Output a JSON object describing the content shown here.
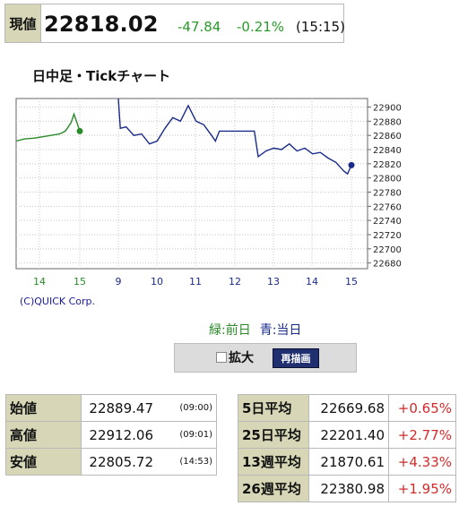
{
  "quote": {
    "label": "現値",
    "price": "22818.02",
    "change": "-47.84",
    "change_pct": "-0.21%",
    "time": "(15:15)"
  },
  "chart_title": "日中足・Tickチャート",
  "copyright": "(C)QUICK Corp.",
  "legend": {
    "prev": "緑:前日",
    "today": "青:当日",
    "prev_color": "#2a8a2a",
    "today_color": "#1a2a8a"
  },
  "controls": {
    "zoom_label": "拡大",
    "zoom_checked": false,
    "redraw_label": "再描画"
  },
  "ohl": [
    {
      "label": "始値",
      "value": "22889.47",
      "time": "(09:00)"
    },
    {
      "label": "高値",
      "value": "22912.06",
      "time": "(09:01)"
    },
    {
      "label": "安値",
      "value": "22805.72",
      "time": "(14:53)"
    }
  ],
  "averages": [
    {
      "label": "5日平均",
      "value": "22669.68",
      "pct": "+0.65%"
    },
    {
      "label": "25日平均",
      "value": "22201.40",
      "pct": "+2.77%"
    },
    {
      "label": "13週平均",
      "value": "21870.61",
      "pct": "+4.33%"
    },
    {
      "label": "26週平均",
      "value": "22380.98",
      "pct": "+1.95%"
    }
  ],
  "chart_data": {
    "type": "line",
    "title": "日中足・Tickチャート",
    "xlabel": "",
    "ylabel": "",
    "x_ticks": [
      "14",
      "15",
      "9",
      "10",
      "11",
      "12",
      "13",
      "14",
      "15"
    ],
    "y_ticks": [
      22900,
      22880,
      22860,
      22840,
      22820,
      22800,
      22780,
      22760,
      22740,
      22720,
      22700,
      22680
    ],
    "ylim": [
      22672,
      22912
    ],
    "grid": true,
    "y_axis_side": "right",
    "series": [
      {
        "color": "#2a8a2a",
        "points": [
          [
            13.0,
            22852
          ],
          [
            13.3,
            22855
          ],
          [
            13.6,
            22856
          ],
          [
            13.9,
            22858
          ],
          [
            14.2,
            22860
          ],
          [
            14.5,
            22862
          ],
          [
            14.7,
            22866
          ],
          [
            14.9,
            22878
          ],
          [
            15.0,
            22890
          ],
          [
            15.1,
            22878
          ],
          [
            15.2,
            22866
          ]
        ]
      },
      {
        "color": "#1a2a8a",
        "points": [
          [
            9.0,
            22912
          ],
          [
            9.05,
            22870
          ],
          [
            9.2,
            22872
          ],
          [
            9.4,
            22860
          ],
          [
            9.6,
            22862
          ],
          [
            9.8,
            22848
          ],
          [
            10.0,
            22852
          ],
          [
            10.2,
            22870
          ],
          [
            10.4,
            22885
          ],
          [
            10.6,
            22880
          ],
          [
            10.8,
            22902
          ],
          [
            11.0,
            22880
          ],
          [
            11.2,
            22875
          ],
          [
            11.4,
            22860
          ],
          [
            11.5,
            22852
          ],
          [
            11.6,
            22866
          ],
          [
            12.0,
            22866
          ],
          [
            12.5,
            22866
          ],
          [
            12.6,
            22830
          ],
          [
            12.8,
            22838
          ],
          [
            13.0,
            22842
          ],
          [
            13.2,
            22840
          ],
          [
            13.4,
            22848
          ],
          [
            13.6,
            22838
          ],
          [
            13.8,
            22842
          ],
          [
            14.0,
            22834
          ],
          [
            14.2,
            22836
          ],
          [
            14.4,
            22828
          ],
          [
            14.6,
            22822
          ],
          [
            14.8,
            22810
          ],
          [
            14.9,
            22805.72
          ],
          [
            15.0,
            22818.02
          ]
        ]
      }
    ],
    "end_markers": [
      {
        "series": 0,
        "x": 15.2,
        "y": 22866
      },
      {
        "series": 1,
        "x": 15.0,
        "y": 22818.02
      }
    ]
  }
}
